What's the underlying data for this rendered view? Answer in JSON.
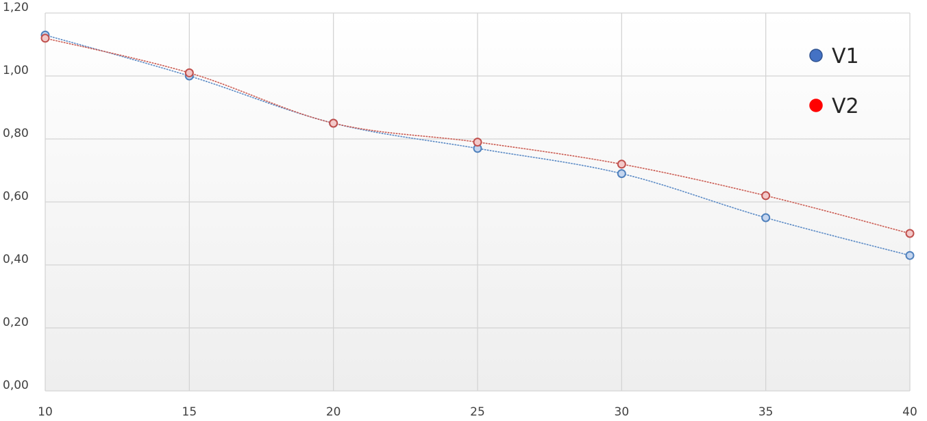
{
  "chart_data": {
    "type": "line",
    "title": "",
    "xlabel": "",
    "ylabel": "",
    "x": [
      10,
      15,
      20,
      25,
      30,
      35,
      40
    ],
    "x_tick_labels": [
      "10",
      "15",
      "20",
      "25",
      "30",
      "35",
      "40"
    ],
    "y_tick_values": [
      0,
      0.2,
      0.4,
      0.6,
      0.8,
      1.0,
      1.2
    ],
    "y_tick_labels": [
      "0,00",
      "0,20",
      "0,40",
      "0,60",
      "0,80",
      "1,00",
      "1,20"
    ],
    "xlim": [
      10,
      40
    ],
    "ylim": [
      0,
      1.2
    ],
    "grid": true,
    "legend_position": "top-right",
    "series": [
      {
        "name": "V1",
        "values": [
          1.13,
          1.0,
          0.85,
          0.77,
          0.69,
          0.55,
          0.43
        ],
        "line_color": "#9dbbe8",
        "marker_fill": "#c5d5ee",
        "marker_stroke": "#4f81bd",
        "legend_color": "#4472c4"
      },
      {
        "name": "V2",
        "values": [
          1.12,
          1.01,
          0.85,
          0.79,
          0.72,
          0.62,
          0.5
        ],
        "line_color": "#f4a28a",
        "marker_fill": "#f2c9c9",
        "marker_stroke": "#c0504d",
        "legend_color": "#ff0000"
      }
    ]
  }
}
